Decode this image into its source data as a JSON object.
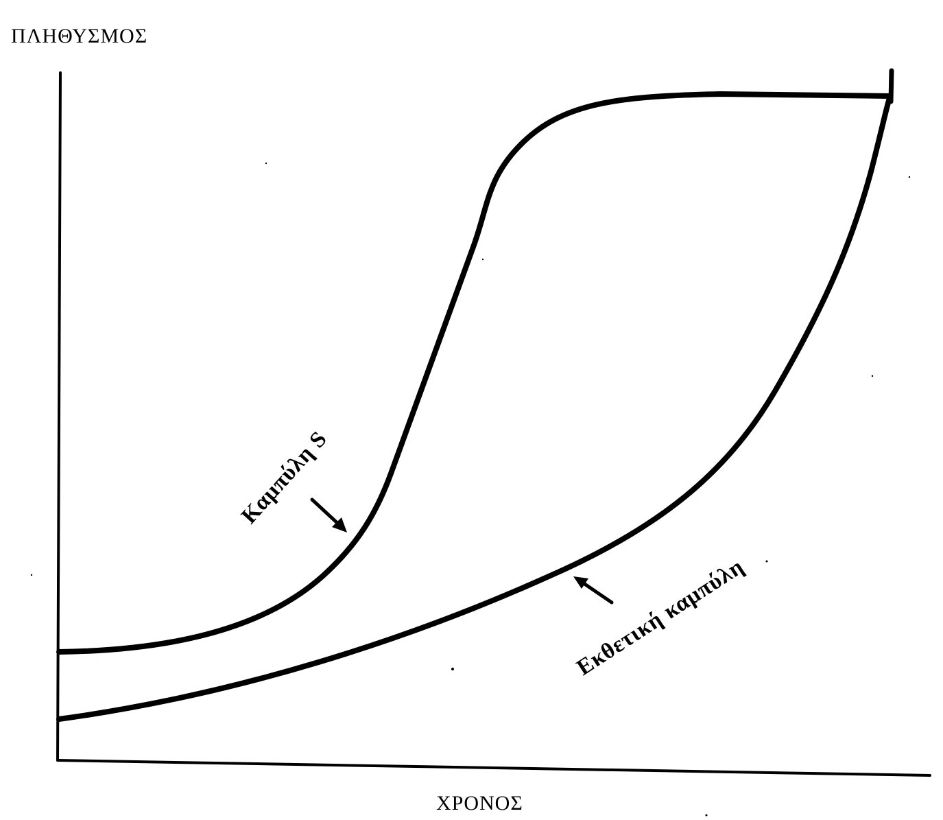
{
  "axes": {
    "y_label": "ΠΛΗΘΥΣΜΟΣ",
    "x_label": "ΧΡΟΝΟΣ"
  },
  "curves": {
    "s_curve": {
      "label": "Καμπύλη S"
    },
    "exponential": {
      "label": "Εκθετική καμπύλη"
    }
  },
  "colors": {
    "ink": "#000000",
    "background": "#ffffff"
  }
}
